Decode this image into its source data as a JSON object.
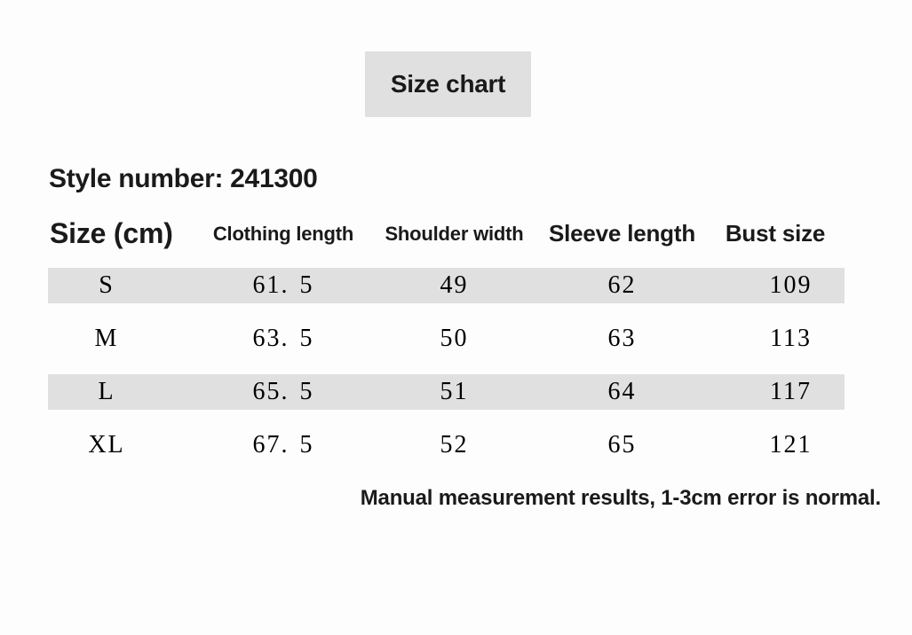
{
  "colors": {
    "banner_bg": "#e0e0e0",
    "stripe_bg": "#e0e0e0",
    "text": "#1a1a1a"
  },
  "banner": {
    "label": "Size chart"
  },
  "style_number": {
    "label": "Style number: 241300"
  },
  "table": {
    "headers": [
      "Size (cm)",
      "Clothing length",
      "Shoulder width",
      "Sleeve length",
      "Bust size"
    ],
    "rows": [
      {
        "cells": [
          "S",
          "61. 5",
          "49",
          "62",
          "109"
        ]
      },
      {
        "cells": [
          "M",
          "63. 5",
          "50",
          "63",
          "113"
        ]
      },
      {
        "cells": [
          "L",
          "65. 5",
          "51",
          "64",
          "117"
        ]
      },
      {
        "cells": [
          "XL",
          "67. 5",
          "52",
          "65",
          "121"
        ]
      }
    ]
  },
  "note": {
    "text": "Manual measurement results, 1-3cm error is normal."
  },
  "chart_data": {
    "type": "table",
    "title": "Size chart",
    "subtitle": "Style number: 241300",
    "columns": [
      "Size (cm)",
      "Clothing length",
      "Shoulder width",
      "Sleeve length",
      "Bust size"
    ],
    "rows": [
      [
        "S",
        61.5,
        49,
        62,
        109
      ],
      [
        "M",
        63.5,
        50,
        63,
        113
      ],
      [
        "L",
        65.5,
        51,
        64,
        117
      ],
      [
        "XL",
        67.5,
        52,
        65,
        121
      ]
    ],
    "striped_rows": [
      "S",
      "L"
    ],
    "note": "Manual measurement results, 1-3cm error is normal."
  }
}
